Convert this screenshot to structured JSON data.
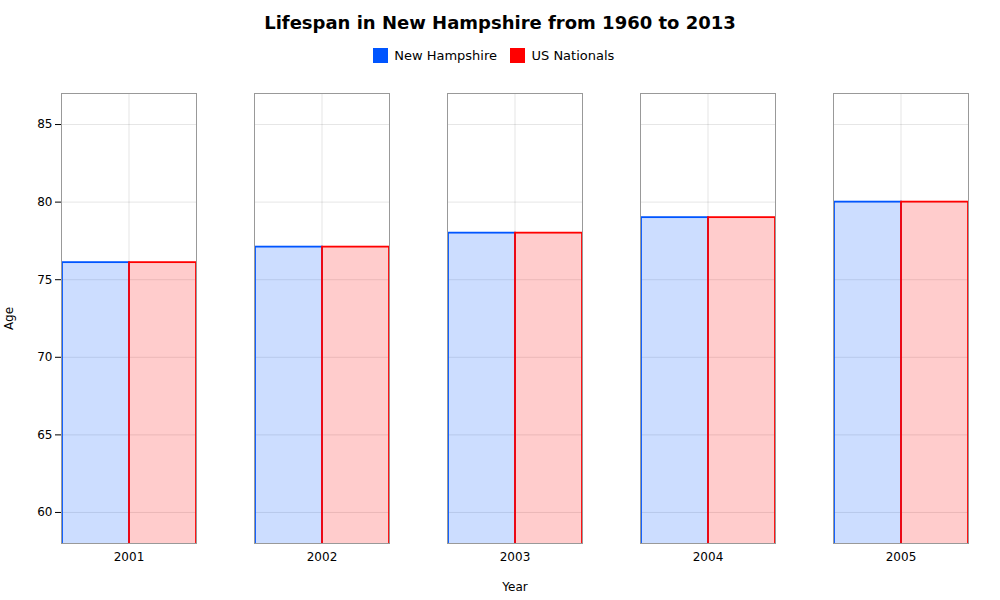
{
  "chart_data": {
    "type": "bar",
    "title": "Lifespan in New Hampshire from 1960 to 2013",
    "xlabel": "Year",
    "ylabel": "Age",
    "categories": [
      "2001",
      "2002",
      "2003",
      "2004",
      "2005"
    ],
    "series": [
      {
        "name": "New Hampshire",
        "color": "#0055ff",
        "values": [
          76.1,
          77.1,
          78.0,
          79.0,
          80.0
        ]
      },
      {
        "name": "US Nationals",
        "color": "#ff0000",
        "values": [
          76.1,
          77.1,
          78.0,
          79.0,
          80.0
        ]
      }
    ],
    "ylim": [
      58,
      87
    ],
    "yticks": [
      60,
      65,
      70,
      75,
      80,
      85
    ],
    "grid": true,
    "legend": "top"
  }
}
